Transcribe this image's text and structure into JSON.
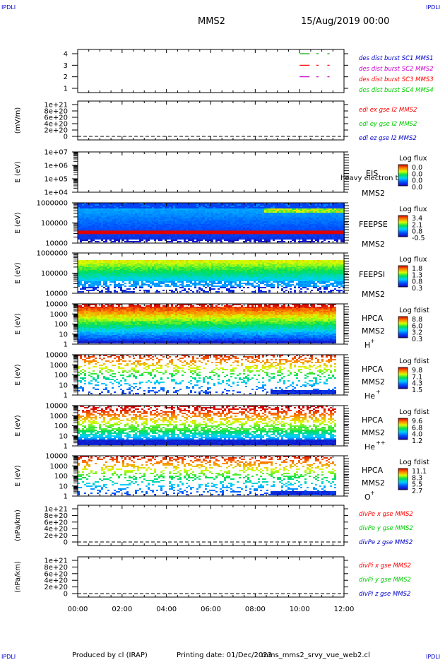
{
  "header": {
    "corner_tl": "IPDLI",
    "corner_tr": "IPDLI",
    "corner_bl": "IPDLI",
    "corner_br": "IPDLI",
    "spacecraft": "MMS2",
    "datetime": "15/Aug/2019 00:00"
  },
  "footer": {
    "produced": "Produced by cl (IRAP)",
    "printing": "Printing date: 01/Dec/2023",
    "file": "mms_mms2_srvy_vue_web2.cl"
  },
  "colors": {
    "panel_border": "#000000",
    "mms1": "#00aa00",
    "mms2": "#ff0000",
    "mms3": "#cc00cc",
    "mms4": "#00cc00",
    "x_comp": "#ff0000",
    "y_comp": "#00cc00",
    "z_comp": "#0000cc"
  },
  "chart_data": {
    "type": "multi-panel time series / spectrogram",
    "x_ticks": [
      "00:00",
      "02:00",
      "04:00",
      "06:00",
      "08:00",
      "10:00",
      "12:00"
    ],
    "xlim_hours": [
      0,
      12
    ],
    "panels": [
      {
        "id": "burst",
        "type": "line",
        "yticks": [
          "4",
          "3",
          "2",
          "1"
        ],
        "ylim": [
          0.5,
          4.5
        ],
        "ylabel": "",
        "labels": [
          {
            "text": "des dist burst SC1 MMS1",
            "color": "#0000cc"
          },
          {
            "text": "des dist burst SC2 MMS2",
            "color": "#cc00cc"
          },
          {
            "text": "des dist burst SC3 MMS3",
            "color": "#ff0000"
          },
          {
            "text": "des dist burst SC4 MMS4",
            "color": "#00cc00"
          }
        ],
        "series": [
          {
            "level": 4,
            "color": "#00aa00",
            "dashes": [
              [
                10.0,
                10.45
              ],
              [
                10.75,
                10.85
              ],
              [
                11.25,
                11.35
              ]
            ]
          },
          {
            "level": 3,
            "color": "#ff0000",
            "dashes": [
              [
                10.0,
                10.45
              ],
              [
                10.75,
                10.85
              ],
              [
                11.25,
                11.35
              ]
            ]
          },
          {
            "level": 2,
            "color": "#cc00cc",
            "dashes": [
              [
                10.0,
                10.45
              ],
              [
                10.75,
                10.85
              ],
              [
                11.25,
                11.35
              ]
            ]
          }
        ]
      },
      {
        "id": "edi",
        "type": "line",
        "yticks": [
          "1e+21",
          "8e+20",
          "6e+20",
          "4e+20",
          "2e+20",
          "0"
        ],
        "ylim": [
          0,
          1e+21
        ],
        "ylabel": "(mV/m)",
        "zero_line": true,
        "labels": [
          {
            "text": "edi ex gse l2 MMS2",
            "color": "#ff0000"
          },
          {
            "text": "edi ey gse l2 MMS2",
            "color": "#00cc00"
          },
          {
            "text": "edi ez gse l2 MMS2",
            "color": "#0000cc"
          }
        ]
      },
      {
        "id": "eis",
        "type": "heatmap",
        "yticks": [
          "1e+07",
          "1e+06",
          "1e+05",
          "1e+04"
        ],
        "ylabel": "E (eV)",
        "instrument": "EIS",
        "subtitle": "MMS2",
        "extra_label": "heavy electron to",
        "cbar_title": "Log flux",
        "cbar_ticks": [
          "0.0",
          "0.0",
          "0.0",
          "0.0"
        ],
        "spectrum": "empty"
      },
      {
        "id": "feepse",
        "type": "heatmap",
        "yticks": [
          "1000000",
          "100000",
          "10000"
        ],
        "ylabel": "E (eV)",
        "instrument": "FEEPSE",
        "subtitle": "MMS2",
        "cbar_title": "Log flux",
        "cbar_ticks": [
          "3.4",
          "2.1",
          "0.8",
          "-0.5"
        ],
        "spectrum": "feepse"
      },
      {
        "id": "feepsi",
        "type": "heatmap",
        "yticks": [
          "1000000",
          "100000",
          "10000"
        ],
        "ylabel": "E (eV)",
        "instrument": "FEEPSI",
        "subtitle": "MMS2",
        "cbar_title": "Log flux",
        "cbar_ticks": [
          "1.8",
          "1.3",
          "0.8",
          "0.3"
        ],
        "spectrum": "feepsi"
      },
      {
        "id": "hpca_h",
        "type": "heatmap",
        "yticks": [
          "10000",
          "1000",
          "100",
          "10",
          "1"
        ],
        "ylabel": "E (eV)",
        "instrument": "HPCA",
        "subtitle": "MMS2",
        "species": "H",
        "species_sup": "+",
        "cbar_title": "Log fdist",
        "cbar_ticks": [
          "8.8",
          "6.0",
          "3.2",
          "0.3"
        ],
        "spectrum": "hpca_h"
      },
      {
        "id": "hpca_he",
        "type": "heatmap",
        "yticks": [
          "10000",
          "1000",
          "100",
          "10",
          "1"
        ],
        "ylabel": "E (eV)",
        "instrument": "HPCA",
        "subtitle": "MMS2",
        "species": "He",
        "species_sup": "+",
        "cbar_title": "Log fdist",
        "cbar_ticks": [
          "9.8",
          "7.1",
          "4.3",
          "1.5"
        ],
        "spectrum": "hpca_he"
      },
      {
        "id": "hpca_hepp",
        "type": "heatmap",
        "yticks": [
          "10000",
          "1000",
          "100",
          "10",
          "1"
        ],
        "ylabel": "E (eV)",
        "instrument": "HPCA",
        "subtitle": "MMS2",
        "species": "He",
        "species_sup": "++",
        "cbar_title": "Log fdist",
        "cbar_ticks": [
          "9.6",
          "6.8",
          "4.0",
          "1.2"
        ],
        "spectrum": "hpca_hepp"
      },
      {
        "id": "hpca_o",
        "type": "heatmap",
        "yticks": [
          "10000",
          "1000",
          "100",
          "10",
          "1"
        ],
        "ylabel": "E (eV)",
        "instrument": "HPCA",
        "subtitle": "MMS2",
        "species": "O",
        "species_sup": "+",
        "cbar_title": "Log fdist",
        "cbar_ticks": [
          "11.1",
          "8.3",
          "5.5",
          "2.7"
        ],
        "spectrum": "hpca_o"
      },
      {
        "id": "divpe",
        "type": "line",
        "yticks": [
          "1e+21",
          "8e+20",
          "6e+20",
          "4e+20",
          "2e+20",
          "0"
        ],
        "ylim": [
          0,
          1e+21
        ],
        "ylabel": "(nPa/km)",
        "zero_line": true,
        "labels": [
          {
            "text": "divPe x gse MMS2",
            "color": "#ff0000"
          },
          {
            "text": "divPe y gse MMS2",
            "color": "#00cc00"
          },
          {
            "text": "divPe z gse MMS2",
            "color": "#0000cc"
          }
        ]
      },
      {
        "id": "divpi",
        "type": "line",
        "yticks": [
          "1e+21",
          "8e+20",
          "6e+20",
          "4e+20",
          "2e+20",
          "0"
        ],
        "ylim": [
          0,
          1e+21
        ],
        "ylabel": "(nPa/km)",
        "zero_line": true,
        "labels": [
          {
            "text": "divPi x gse MMS2",
            "color": "#ff0000"
          },
          {
            "text": "divPi y gse MMS2",
            "color": "#00cc00"
          },
          {
            "text": "divPi z gse MMS2",
            "color": "#0000cc"
          }
        ]
      }
    ]
  }
}
